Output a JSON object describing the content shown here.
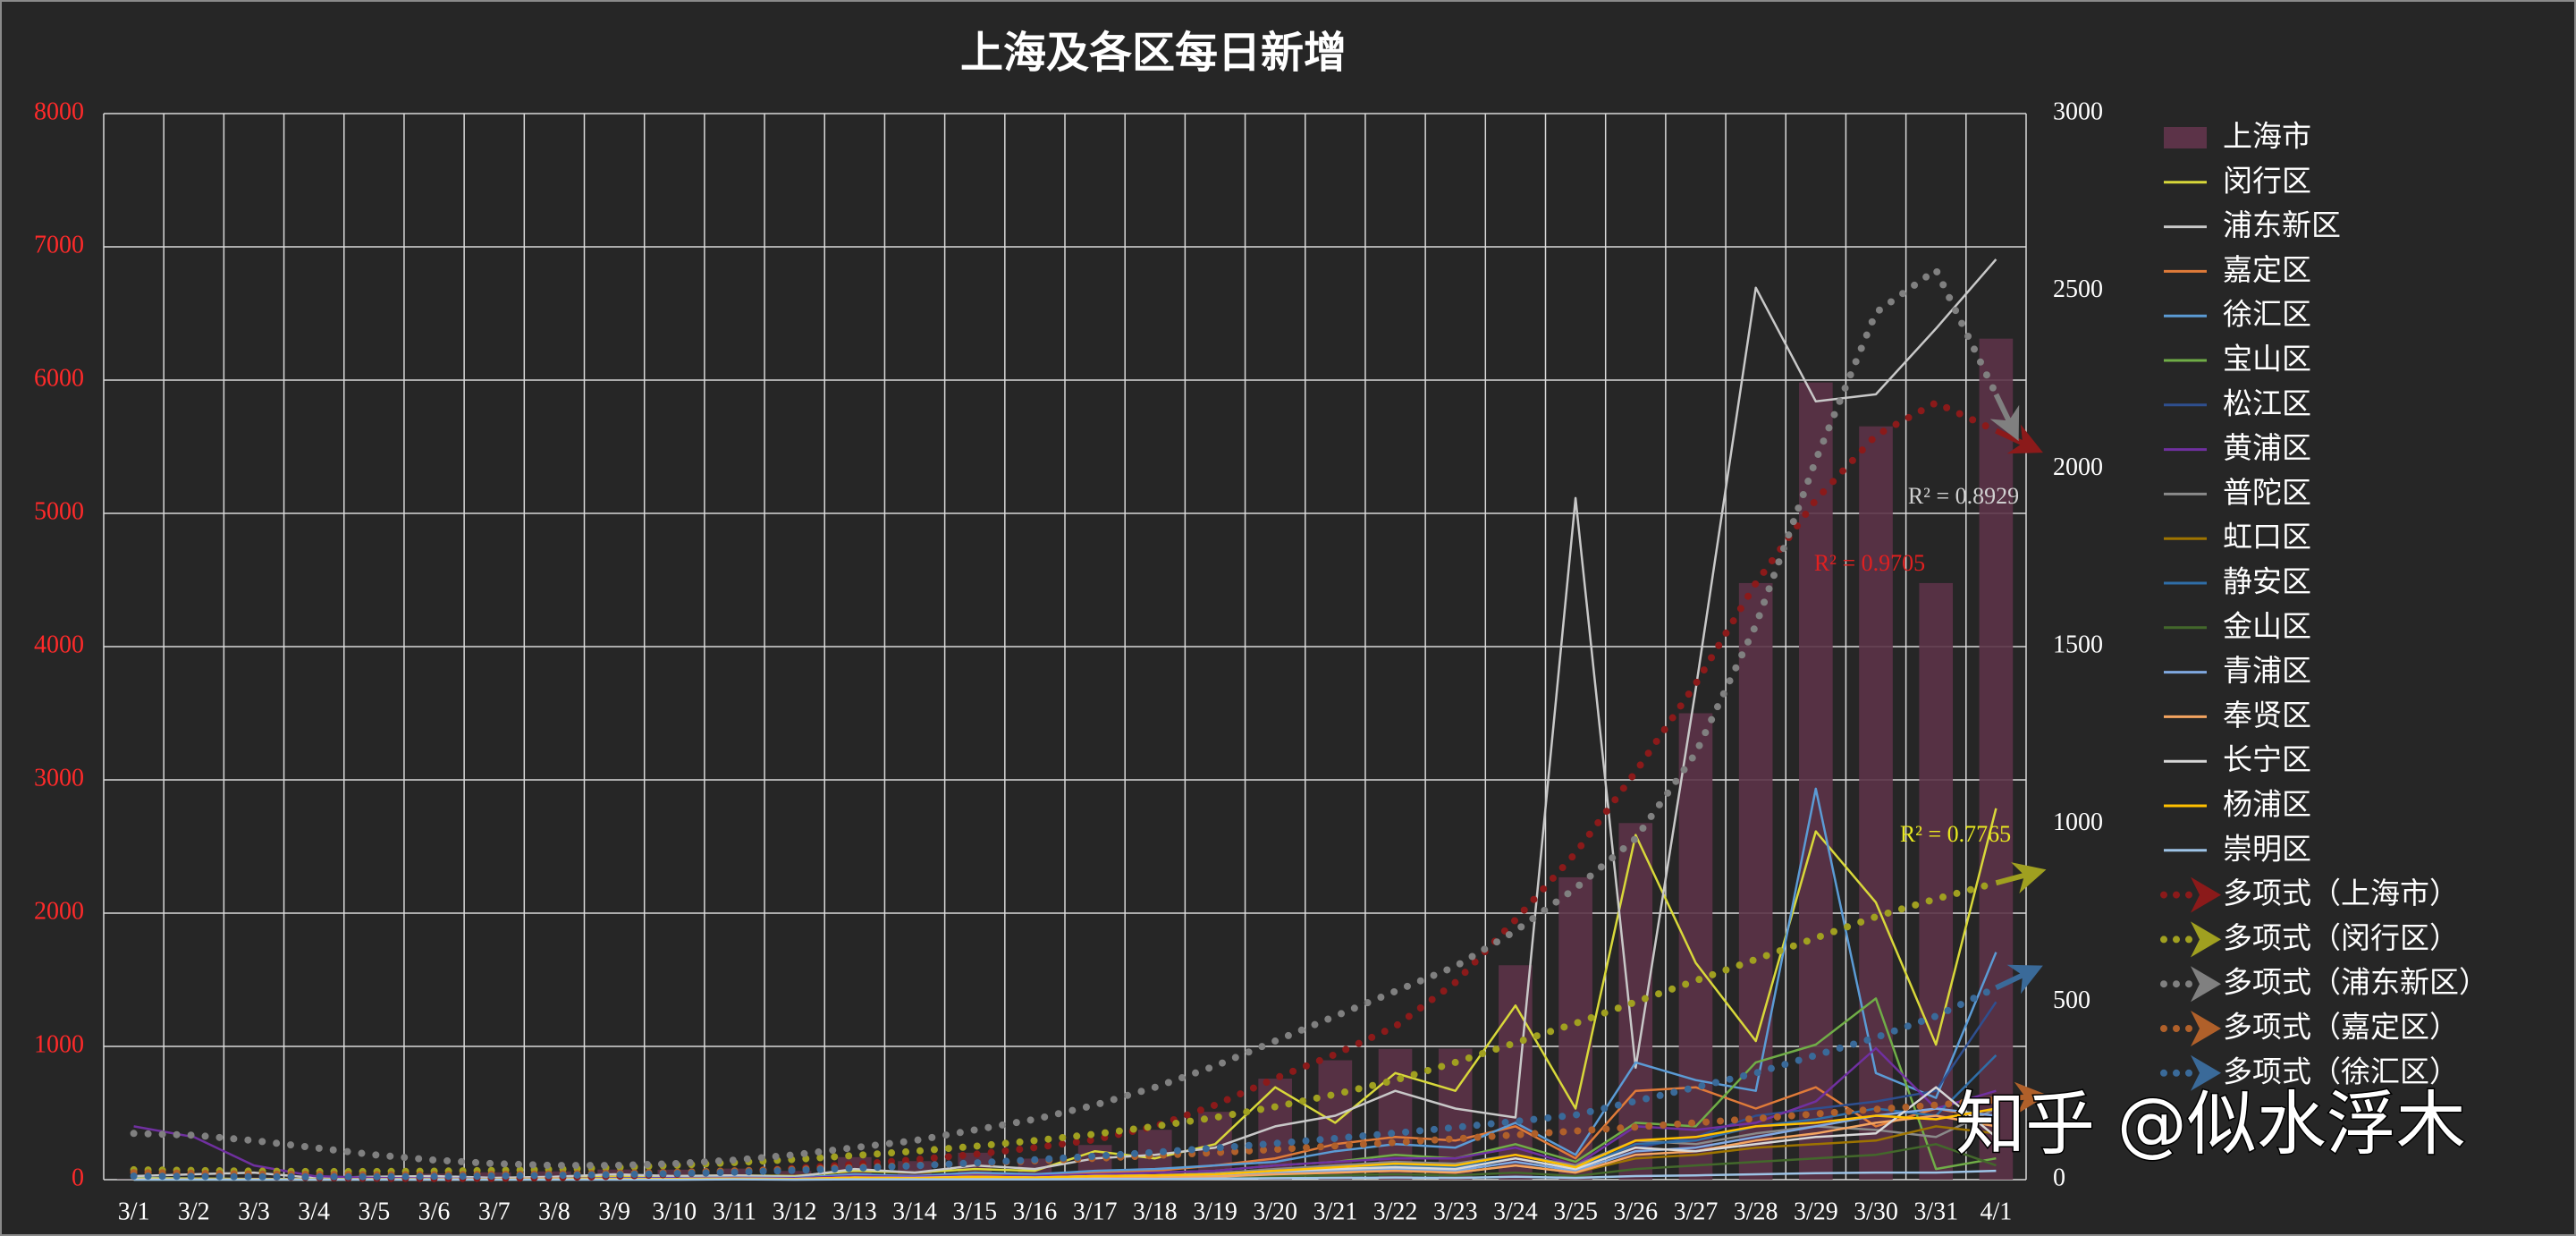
{
  "chart_data": {
    "type": "combo",
    "title": "上海及各区每日新增",
    "categories": [
      "3/1",
      "3/2",
      "3/3",
      "3/4",
      "3/5",
      "3/6",
      "3/7",
      "3/8",
      "3/9",
      "3/10",
      "3/11",
      "3/12",
      "3/13",
      "3/14",
      "3/15",
      "3/16",
      "3/17",
      "3/18",
      "3/19",
      "3/20",
      "3/21",
      "3/22",
      "3/23",
      "3/24",
      "3/25",
      "3/26",
      "3/27",
      "3/28",
      "3/29",
      "3/30",
      "3/31",
      "4/1"
    ],
    "ylim": [
      0,
      8000
    ],
    "yticks": [
      0,
      1000,
      2000,
      3000,
      4000,
      5000,
      6000,
      7000,
      8000
    ],
    "y2lim": [
      0,
      3000
    ],
    "y2ticks": [
      0,
      500,
      1000,
      1500,
      2000,
      2500,
      3000
    ],
    "grid": true,
    "legend": "right",
    "series": [
      {
        "name": "上海市",
        "kind": "bar",
        "color": "#5c3348",
        "values": [
          2,
          8,
          16,
          19,
          28,
          45,
          55,
          62,
          76,
          75,
          83,
          65,
          169,
          139,
          202,
          158,
          260,
          374,
          509,
          758,
          896,
          981,
          983,
          1609,
          2269,
          2676,
          3500,
          4477,
          5982,
          5653,
          4477,
          6311
        ]
      },
      {
        "name": "闵行区",
        "kind": "line",
        "axis": "y2",
        "color": "#d8d83a",
        "values": [
          5,
          3,
          2,
          1,
          2,
          3,
          2,
          5,
          8,
          10,
          12,
          10,
          25,
          20,
          30,
          25,
          80,
          60,
          100,
          260,
          160,
          300,
          250,
          490,
          200,
          970,
          610,
          390,
          980,
          780,
          380,
          1045
        ]
      },
      {
        "name": "浦东新区",
        "kind": "line",
        "axis": "y2",
        "color": "#c8c8c8",
        "values": [
          10,
          15,
          20,
          5,
          8,
          10,
          5,
          8,
          15,
          10,
          12,
          8,
          30,
          20,
          40,
          30,
          60,
          70,
          90,
          150,
          180,
          250,
          200,
          175,
          1918,
          315,
          1380,
          2510,
          2190,
          2210,
          2395,
          2590
        ]
      },
      {
        "name": "嘉定区",
        "kind": "line",
        "axis": "y2",
        "color": "#e07b39",
        "values": [
          2,
          1,
          1,
          2,
          3,
          1,
          2,
          3,
          5,
          4,
          5,
          3,
          10,
          8,
          15,
          10,
          20,
          25,
          40,
          60,
          100,
          120,
          110,
          150,
          60,
          250,
          260,
          200,
          260,
          150,
          200,
          170
        ]
      },
      {
        "name": "徐汇区",
        "kind": "line",
        "axis": "y2",
        "color": "#5b9bd5",
        "values": [
          3,
          2,
          1,
          1,
          2,
          3,
          2,
          2,
          4,
          5,
          6,
          5,
          15,
          10,
          20,
          15,
          25,
          30,
          40,
          50,
          80,
          100,
          90,
          160,
          70,
          330,
          280,
          250,
          1100,
          300,
          230,
          640
        ]
      },
      {
        "name": "宝山区",
        "kind": "line",
        "axis": "y2",
        "color": "#70ad47",
        "values": [
          1,
          1,
          1,
          2,
          2,
          1,
          1,
          2,
          3,
          3,
          4,
          3,
          8,
          6,
          10,
          8,
          15,
          20,
          25,
          40,
          50,
          70,
          60,
          100,
          50,
          160,
          150,
          330,
          380,
          510,
          30,
          60
        ]
      },
      {
        "name": "松江区",
        "kind": "line",
        "axis": "y2",
        "color": "#2f4f8f",
        "values": [
          1,
          1,
          1,
          1,
          1,
          1,
          1,
          2,
          2,
          2,
          3,
          2,
          5,
          4,
          6,
          5,
          8,
          10,
          12,
          20,
          30,
          40,
          30,
          60,
          30,
          90,
          120,
          180,
          200,
          220,
          250,
          500
        ]
      },
      {
        "name": "黄浦区",
        "kind": "line",
        "axis": "y2",
        "color": "#7030a0",
        "values": [
          150,
          120,
          40,
          10,
          5,
          3,
          2,
          2,
          3,
          4,
          5,
          4,
          10,
          8,
          12,
          10,
          15,
          20,
          25,
          40,
          50,
          60,
          60,
          90,
          40,
          150,
          140,
          160,
          220,
          370,
          200,
          250
        ]
      },
      {
        "name": "普陀区",
        "kind": "line",
        "axis": "y2",
        "color": "#8a8a8a",
        "values": [
          1,
          1,
          1,
          1,
          1,
          1,
          1,
          2,
          2,
          2,
          3,
          2,
          6,
          5,
          8,
          6,
          10,
          12,
          18,
          30,
          40,
          50,
          45,
          70,
          40,
          110,
          100,
          130,
          150,
          140,
          120,
          200
        ]
      },
      {
        "name": "虹口区",
        "kind": "line",
        "axis": "y2",
        "color": "#9e7400",
        "values": [
          1,
          0,
          1,
          0,
          1,
          1,
          0,
          1,
          1,
          2,
          2,
          1,
          4,
          3,
          5,
          4,
          6,
          8,
          10,
          15,
          20,
          25,
          20,
          40,
          20,
          60,
          70,
          90,
          100,
          110,
          150,
          130
        ]
      },
      {
        "name": "静安区",
        "kind": "line",
        "axis": "y2",
        "color": "#2f6ea8",
        "values": [
          0,
          1,
          0,
          1,
          1,
          1,
          1,
          1,
          2,
          2,
          2,
          2,
          5,
          4,
          6,
          5,
          8,
          10,
          15,
          25,
          35,
          40,
          35,
          60,
          30,
          100,
          110,
          150,
          170,
          200,
          180,
          350
        ]
      },
      {
        "name": "金山区",
        "kind": "line",
        "axis": "y2",
        "color": "#43682b",
        "values": [
          0,
          0,
          0,
          0,
          0,
          0,
          0,
          0,
          1,
          1,
          1,
          1,
          2,
          2,
          3,
          2,
          4,
          5,
          6,
          10,
          12,
          15,
          12,
          20,
          10,
          30,
          40,
          50,
          60,
          70,
          100,
          40
        ]
      },
      {
        "name": "青浦区",
        "kind": "line",
        "axis": "y2",
        "color": "#7fa8e0",
        "values": [
          1,
          1,
          1,
          1,
          1,
          1,
          1,
          1,
          2,
          2,
          2,
          2,
          4,
          3,
          5,
          4,
          6,
          8,
          10,
          20,
          25,
          30,
          25,
          50,
          25,
          80,
          90,
          120,
          150,
          180,
          200,
          180
        ]
      },
      {
        "name": "奉贤区",
        "kind": "line",
        "axis": "y2",
        "color": "#f4a460",
        "values": [
          1,
          1,
          0,
          0,
          1,
          0,
          1,
          1,
          1,
          1,
          2,
          1,
          3,
          3,
          4,
          3,
          5,
          6,
          8,
          15,
          20,
          25,
          20,
          40,
          20,
          70,
          80,
          110,
          130,
          160,
          180,
          150
        ]
      },
      {
        "name": "长宁区",
        "kind": "line",
        "axis": "y2",
        "color": "#d8d8d8",
        "values": [
          2,
          1,
          1,
          1,
          1,
          1,
          1,
          1,
          2,
          2,
          3,
          2,
          6,
          5,
          8,
          6,
          10,
          12,
          15,
          25,
          30,
          35,
          30,
          60,
          30,
          90,
          80,
          100,
          120,
          130,
          260,
          120
        ]
      },
      {
        "name": "杨浦区",
        "kind": "line",
        "axis": "y2",
        "color": "#ffc000",
        "values": [
          1,
          1,
          1,
          1,
          1,
          1,
          1,
          1,
          2,
          2,
          3,
          2,
          6,
          4,
          8,
          6,
          10,
          12,
          15,
          25,
          35,
          45,
          40,
          70,
          35,
          110,
          120,
          150,
          160,
          180,
          170,
          200
        ]
      },
      {
        "name": "崇明区",
        "kind": "line",
        "axis": "y2",
        "color": "#9dc3e6",
        "values": [
          0,
          0,
          0,
          0,
          0,
          0,
          0,
          0,
          0,
          0,
          1,
          0,
          1,
          1,
          1,
          1,
          2,
          2,
          3,
          4,
          5,
          6,
          5,
          8,
          5,
          10,
          12,
          15,
          18,
          20,
          20,
          25
        ]
      },
      {
        "name": "多项式（上海市）",
        "kind": "trend",
        "color": "#8b1a1a",
        "values": [
          60,
          40,
          25,
          15,
          10,
          8,
          10,
          15,
          25,
          40,
          60,
          85,
          115,
          150,
          190,
          240,
          300,
          400,
          560,
          760,
          940,
          1150,
          1480,
          1950,
          2450,
          3060,
          3720,
          4475,
          5100,
          5585,
          5830,
          5620
        ]
      },
      {
        "name": "多项式（闵行区）",
        "kind": "trend",
        "axis": "y2",
        "color": "#a0a020",
        "values": [
          28,
          26,
          24,
          23,
          23,
          24,
          26,
          29,
          34,
          40,
          48,
          57,
          68,
          80,
          94,
          110,
          128,
          150,
          175,
          205,
          240,
          280,
          330,
          385,
          440,
          500,
          560,
          620,
          680,
          740,
          790,
          835
        ]
      },
      {
        "name": "多项式（浦东新区）",
        "kind": "trend",
        "axis": "y2",
        "color": "#808080",
        "values": [
          130,
          125,
          110,
          90,
          70,
          55,
          45,
          40,
          40,
          45,
          55,
          70,
          90,
          110,
          140,
          170,
          210,
          260,
          320,
          390,
          460,
          530,
          600,
          700,
          820,
          960,
          1200,
          1560,
          2025,
          2440,
          2560,
          2210
        ]
      },
      {
        "name": "多项式（嘉定区）",
        "kind": "trend",
        "axis": "y2",
        "color": "#b0602a",
        "values": [
          20,
          18,
          16,
          15,
          14,
          14,
          15,
          16,
          18,
          21,
          25,
          29,
          34,
          40,
          46,
          53,
          60,
          68,
          76,
          85,
          95,
          105,
          115,
          126,
          137,
          148,
          160,
          172,
          185,
          198,
          210,
          225
        ]
      },
      {
        "name": "多项式（徐汇区）",
        "kind": "trend",
        "axis": "y2",
        "color": "#3a6a99",
        "values": [
          10,
          9,
          8,
          8,
          8,
          9,
          10,
          12,
          14,
          17,
          21,
          26,
          32,
          39,
          47,
          56,
          66,
          77,
          89,
          102,
          116,
          131,
          147,
          164,
          182,
          221,
          260,
          300,
          350,
          400,
          460,
          540
        ]
      }
    ],
    "annotations": [
      {
        "text": "R² = 0.8929",
        "color": "#d0d0d0"
      },
      {
        "text": "R² = 0.9705",
        "color": "#e02020"
      },
      {
        "text": "R² = 0.7765",
        "color": "#e8e820"
      }
    ],
    "watermark": "知乎 @似水浮木"
  }
}
